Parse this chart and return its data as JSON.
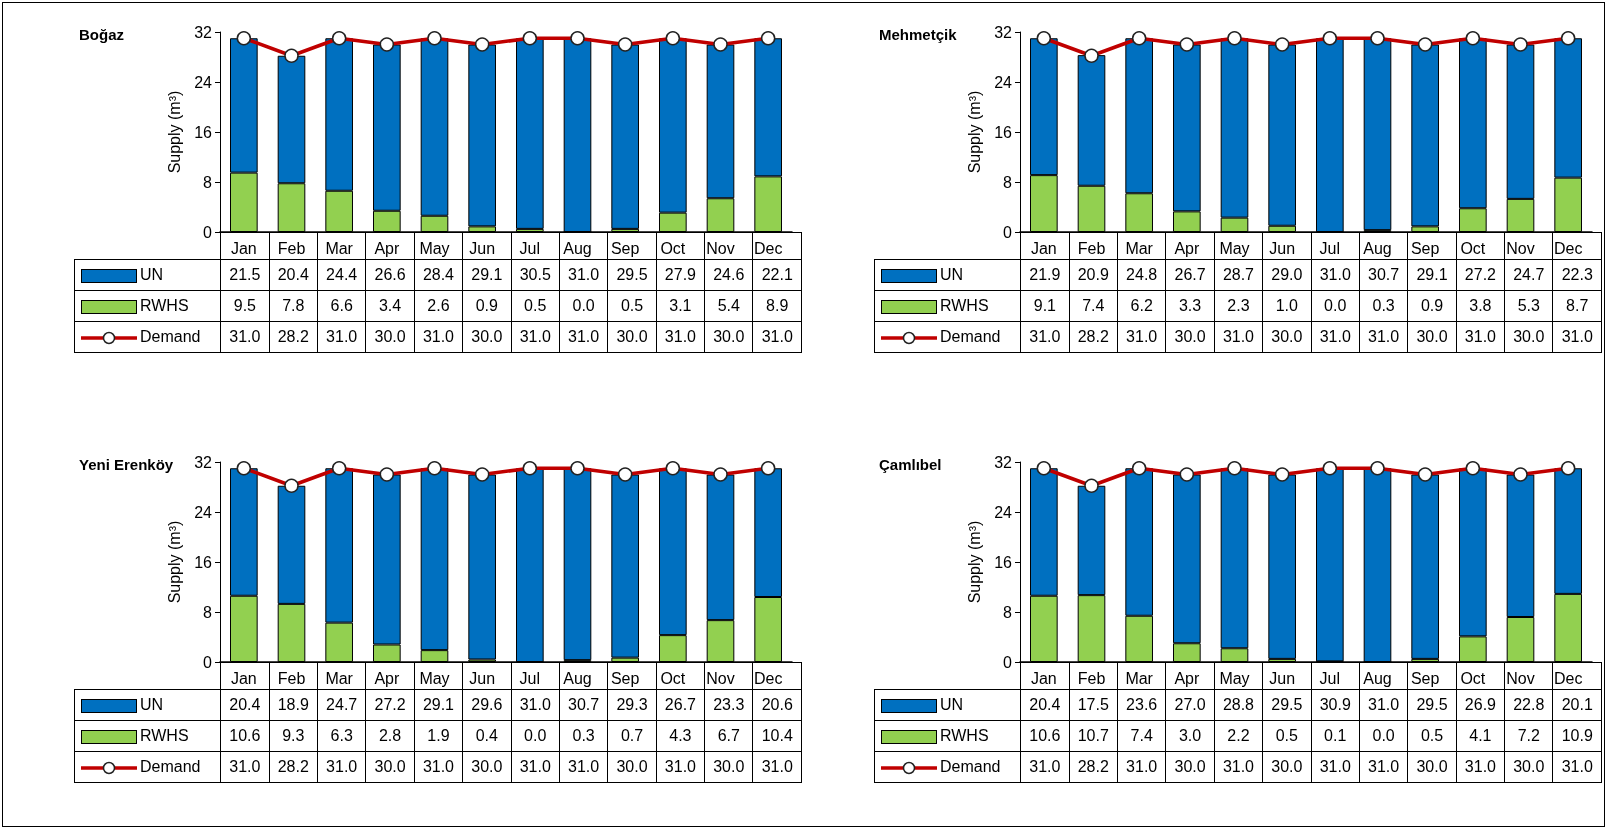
{
  "chart_data": [
    {
      "type": "bar",
      "title": "Boğaz",
      "ylabel": "Supply (m³)",
      "categories": [
        "Jan",
        "Feb",
        "Mar",
        "Apr",
        "May",
        "Jun",
        "Jul",
        "Aug",
        "Sep",
        "Oct",
        "Nov",
        "Dec"
      ],
      "stacked": true,
      "ylim": [
        0,
        32
      ],
      "yticks": [
        0,
        8,
        16,
        24,
        32
      ],
      "grid": false,
      "legend": "bottom",
      "marker": "circle",
      "series": [
        {
          "name": "RWHS",
          "color": "#92d050",
          "values": [
            9.5,
            7.8,
            6.6,
            3.4,
            2.6,
            0.9,
            0.5,
            0.0,
            0.5,
            3.1,
            5.4,
            8.9
          ],
          "value_labels": [
            "9.5",
            "7.8",
            "6.6",
            "3.4",
            "2.6",
            "0.9",
            "0.5",
            "0.0",
            "0.5",
            "3.1",
            "5.4",
            "8.9"
          ]
        },
        {
          "name": "UN",
          "color": "#0070c0",
          "values": [
            21.5,
            20.4,
            24.4,
            26.6,
            28.4,
            29.1,
            30.5,
            31.0,
            29.5,
            27.9,
            24.6,
            22.1
          ],
          "value_labels": [
            "21.5",
            "20.4",
            "24.4",
            "26.6",
            "28.4",
            "29.1",
            "30.5",
            "31.0",
            "29.5",
            "27.9",
            "24.6",
            "22.1"
          ]
        },
        {
          "name": "Demand",
          "type": "line",
          "color": "#c00000",
          "values": [
            31.0,
            28.2,
            31.0,
            30.0,
            31.0,
            30.0,
            31.0,
            31.0,
            30.0,
            31.0,
            30.0,
            31.0
          ],
          "value_labels": [
            "31.0",
            "28.2",
            "31.0",
            "30.0",
            "31.0",
            "30.0",
            "31.0",
            "31.0",
            "30.0",
            "31.0",
            "30.0",
            "31.0"
          ]
        }
      ]
    },
    {
      "type": "bar",
      "title": "Mehmetçik",
      "ylabel": "Supply (m³)",
      "categories": [
        "Jan",
        "Feb",
        "Mar",
        "Apr",
        "May",
        "Jun",
        "Jul",
        "Aug",
        "Sep",
        "Oct",
        "Nov",
        "Dec"
      ],
      "stacked": true,
      "ylim": [
        0,
        32
      ],
      "yticks": [
        0,
        8,
        16,
        24,
        32
      ],
      "grid": false,
      "legend": "bottom",
      "marker": "circle",
      "series": [
        {
          "name": "RWHS",
          "color": "#92d050",
          "values": [
            9.1,
            7.4,
            6.2,
            3.3,
            2.3,
            1.0,
            0.0,
            0.3,
            0.9,
            3.8,
            5.3,
            8.7
          ],
          "value_labels": [
            "9.1",
            "7.4",
            "6.2",
            "3.3",
            "2.3",
            "1.0",
            "0.0",
            "0.3",
            "0.9",
            "3.8",
            "5.3",
            "8.7"
          ]
        },
        {
          "name": "UN",
          "color": "#0070c0",
          "values": [
            21.9,
            20.9,
            24.8,
            26.7,
            28.7,
            29.0,
            31.0,
            30.7,
            29.1,
            27.2,
            24.7,
            22.3
          ],
          "value_labels": [
            "21.9",
            "20.9",
            "24.8",
            "26.7",
            "28.7",
            "29.0",
            "31.0",
            "30.7",
            "29.1",
            "27.2",
            "24.7",
            "22.3"
          ]
        },
        {
          "name": "Demand",
          "type": "line",
          "color": "#c00000",
          "values": [
            31.0,
            28.2,
            31.0,
            30.0,
            31.0,
            30.0,
            31.0,
            31.0,
            30.0,
            31.0,
            30.0,
            31.0
          ],
          "value_labels": [
            "31.0",
            "28.2",
            "31.0",
            "30.0",
            "31.0",
            "30.0",
            "31.0",
            "31.0",
            "30.0",
            "31.0",
            "30.0",
            "31.0"
          ]
        }
      ]
    },
    {
      "type": "bar",
      "title": "Yeni Erenköy",
      "ylabel": "Supply (m³)",
      "categories": [
        "Jan",
        "Feb",
        "Mar",
        "Apr",
        "May",
        "Jun",
        "Jul",
        "Aug",
        "Sep",
        "Oct",
        "Nov",
        "Dec"
      ],
      "stacked": true,
      "ylim": [
        0,
        32
      ],
      "yticks": [
        0,
        8,
        16,
        24,
        32
      ],
      "grid": false,
      "legend": "bottom",
      "marker": "circle",
      "series": [
        {
          "name": "RWHS",
          "color": "#92d050",
          "values": [
            10.6,
            9.3,
            6.3,
            2.8,
            1.9,
            0.4,
            0.0,
            0.3,
            0.7,
            4.3,
            6.7,
            10.4
          ],
          "value_labels": [
            "10.6",
            "9.3",
            "6.3",
            "2.8",
            "1.9",
            "0.4",
            "0.0",
            "0.3",
            "0.7",
            "4.3",
            "6.7",
            "10.4"
          ]
        },
        {
          "name": "UN",
          "color": "#0070c0",
          "values": [
            20.4,
            18.9,
            24.7,
            27.2,
            29.1,
            29.6,
            31.0,
            30.7,
            29.3,
            26.7,
            23.3,
            20.6
          ],
          "value_labels": [
            "20.4",
            "18.9",
            "24.7",
            "27.2",
            "29.1",
            "29.6",
            "31.0",
            "30.7",
            "29.3",
            "26.7",
            "23.3",
            "20.6"
          ]
        },
        {
          "name": "Demand",
          "type": "line",
          "color": "#c00000",
          "values": [
            31.0,
            28.2,
            31.0,
            30.0,
            31.0,
            30.0,
            31.0,
            31.0,
            30.0,
            31.0,
            30.0,
            31.0
          ],
          "value_labels": [
            "31.0",
            "28.2",
            "31.0",
            "30.0",
            "31.0",
            "30.0",
            "31.0",
            "31.0",
            "30.0",
            "31.0",
            "30.0",
            "31.0"
          ]
        }
      ]
    },
    {
      "type": "bar",
      "title": "Çamlıbel",
      "ylabel": "Supply (m³)",
      "categories": [
        "Jan",
        "Feb",
        "Mar",
        "Apr",
        "May",
        "Jun",
        "Jul",
        "Aug",
        "Sep",
        "Oct",
        "Nov",
        "Dec"
      ],
      "stacked": true,
      "ylim": [
        0,
        32
      ],
      "yticks": [
        0,
        8,
        16,
        24,
        32
      ],
      "grid": false,
      "legend": "bottom",
      "marker": "circle",
      "series": [
        {
          "name": "RWHS",
          "color": "#92d050",
          "values": [
            10.6,
            10.7,
            7.4,
            3.0,
            2.2,
            0.5,
            0.1,
            0.0,
            0.5,
            4.1,
            7.2,
            10.9
          ],
          "value_labels": [
            "10.6",
            "10.7",
            "7.4",
            "3.0",
            "2.2",
            "0.5",
            "0.1",
            "0.0",
            "0.5",
            "4.1",
            "7.2",
            "10.9"
          ]
        },
        {
          "name": "UN",
          "color": "#0070c0",
          "values": [
            20.4,
            17.5,
            23.6,
            27.0,
            28.8,
            29.5,
            30.9,
            31.0,
            29.5,
            26.9,
            22.8,
            20.1
          ],
          "value_labels": [
            "20.4",
            "17.5",
            "23.6",
            "27.0",
            "28.8",
            "29.5",
            "30.9",
            "31.0",
            "29.5",
            "26.9",
            "22.8",
            "20.1"
          ]
        },
        {
          "name": "Demand",
          "type": "line",
          "color": "#c00000",
          "values": [
            31.0,
            28.2,
            31.0,
            30.0,
            31.0,
            30.0,
            31.0,
            31.0,
            30.0,
            31.0,
            30.0,
            31.0
          ],
          "value_labels": [
            "31.0",
            "28.2",
            "31.0",
            "30.0",
            "31.0",
            "30.0",
            "31.0",
            "31.0",
            "30.0",
            "31.0",
            "30.0",
            "31.0"
          ]
        }
      ]
    }
  ]
}
